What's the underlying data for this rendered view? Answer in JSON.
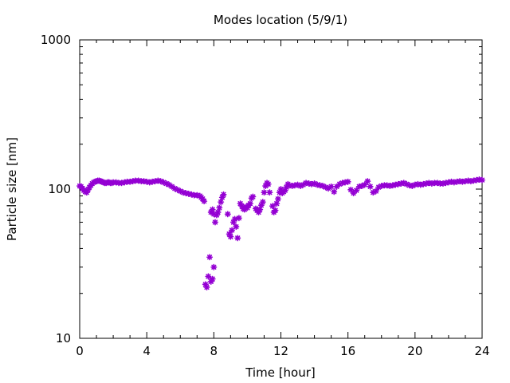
{
  "chart_data": {
    "type": "scatter",
    "title": "Modes location (5/9/1)",
    "xlabel": "Time [hour]",
    "ylabel": "Particle size [nm]",
    "xlim": [
      0,
      24
    ],
    "ylim": [
      10,
      1000
    ],
    "y_scale": "log",
    "grid": false,
    "marker_color": "#9400d3",
    "marker": "asterisk",
    "x_ticks": [
      {
        "value": 0,
        "label": "0"
      },
      {
        "value": 4,
        "label": "4"
      },
      {
        "value": 8,
        "label": "8"
      },
      {
        "value": 12,
        "label": "12"
      },
      {
        "value": 16,
        "label": "16"
      },
      {
        "value": 20,
        "label": "20"
      },
      {
        "value": 24,
        "label": "24"
      }
    ],
    "y_ticks": [
      {
        "value": 10,
        "label": "10"
      },
      {
        "value": 100,
        "label": "100"
      },
      {
        "value": 1000,
        "label": "1000"
      }
    ],
    "points": [
      [
        0.0,
        105
      ],
      [
        0.08,
        104
      ],
      [
        0.17,
        101
      ],
      [
        0.25,
        98
      ],
      [
        0.33,
        96
      ],
      [
        0.42,
        95
      ],
      [
        0.5,
        99
      ],
      [
        0.58,
        103
      ],
      [
        0.67,
        106
      ],
      [
        0.75,
        109
      ],
      [
        0.83,
        111
      ],
      [
        0.92,
        112
      ],
      [
        1.0,
        113
      ],
      [
        1.08,
        114
      ],
      [
        1.17,
        114
      ],
      [
        1.25,
        113
      ],
      [
        1.33,
        112
      ],
      [
        1.42,
        111
      ],
      [
        1.5,
        110
      ],
      [
        1.58,
        110
      ],
      [
        1.67,
        111
      ],
      [
        1.75,
        111
      ],
      [
        1.83,
        110
      ],
      [
        1.92,
        110
      ],
      [
        2.0,
        111
      ],
      [
        2.17,
        111
      ],
      [
        2.33,
        110
      ],
      [
        2.5,
        110
      ],
      [
        2.67,
        111
      ],
      [
        2.83,
        112
      ],
      [
        3.0,
        112
      ],
      [
        3.17,
        113
      ],
      [
        3.33,
        114
      ],
      [
        3.5,
        114
      ],
      [
        3.67,
        113
      ],
      [
        3.83,
        113
      ],
      [
        4.0,
        112
      ],
      [
        4.17,
        111
      ],
      [
        4.33,
        112
      ],
      [
        4.5,
        113
      ],
      [
        4.67,
        114
      ],
      [
        4.83,
        113
      ],
      [
        5.0,
        111
      ],
      [
        5.17,
        109
      ],
      [
        5.33,
        107
      ],
      [
        5.5,
        104
      ],
      [
        5.67,
        101
      ],
      [
        5.83,
        99
      ],
      [
        6.0,
        97
      ],
      [
        6.17,
        95
      ],
      [
        6.33,
        94
      ],
      [
        6.5,
        93
      ],
      [
        6.67,
        92
      ],
      [
        6.83,
        91
      ],
      [
        7.0,
        91
      ],
      [
        7.17,
        90
      ],
      [
        7.25,
        88
      ],
      [
        7.33,
        86
      ],
      [
        7.42,
        83
      ],
      [
        7.5,
        23
      ],
      [
        7.58,
        22
      ],
      [
        7.67,
        26
      ],
      [
        7.75,
        35
      ],
      [
        7.83,
        24
      ],
      [
        7.92,
        25
      ],
      [
        8.0,
        30
      ],
      [
        7.83,
        70
      ],
      [
        7.92,
        73
      ],
      [
        8.0,
        68
      ],
      [
        8.08,
        60
      ],
      [
        8.17,
        67
      ],
      [
        8.25,
        70
      ],
      [
        8.33,
        75
      ],
      [
        8.42,
        82
      ],
      [
        8.5,
        88
      ],
      [
        8.58,
        92
      ],
      [
        8.83,
        68
      ],
      [
        8.92,
        50
      ],
      [
        9.0,
        48
      ],
      [
        9.08,
        53
      ],
      [
        9.17,
        60
      ],
      [
        9.25,
        63
      ],
      [
        9.33,
        56
      ],
      [
        9.42,
        47
      ],
      [
        9.5,
        64
      ],
      [
        9.58,
        80
      ],
      [
        9.67,
        77
      ],
      [
        9.75,
        74
      ],
      [
        9.83,
        73
      ],
      [
        9.92,
        76
      ],
      [
        10.0,
        75
      ],
      [
        10.08,
        78
      ],
      [
        10.17,
        80
      ],
      [
        10.25,
        87
      ],
      [
        10.33,
        89
      ],
      [
        10.5,
        74
      ],
      [
        10.58,
        72
      ],
      [
        10.67,
        70
      ],
      [
        10.75,
        73
      ],
      [
        10.83,
        78
      ],
      [
        10.92,
        82
      ],
      [
        11.0,
        95
      ],
      [
        11.08,
        105
      ],
      [
        11.17,
        110
      ],
      [
        11.25,
        108
      ],
      [
        11.33,
        95
      ],
      [
        11.5,
        77
      ],
      [
        11.58,
        70
      ],
      [
        11.67,
        72
      ],
      [
        11.75,
        80
      ],
      [
        11.83,
        86
      ],
      [
        11.92,
        95
      ],
      [
        12.0,
        100
      ],
      [
        12.08,
        94
      ],
      [
        12.17,
        96
      ],
      [
        12.25,
        98
      ],
      [
        12.33,
        103
      ],
      [
        12.42,
        108
      ],
      [
        12.5,
        106
      ],
      [
        12.67,
        105
      ],
      [
        12.83,
        106
      ],
      [
        13.0,
        107
      ],
      [
        13.17,
        105
      ],
      [
        13.33,
        107
      ],
      [
        13.5,
        110
      ],
      [
        13.67,
        109
      ],
      [
        13.83,
        108
      ],
      [
        14.0,
        109
      ],
      [
        14.17,
        107
      ],
      [
        14.33,
        106
      ],
      [
        14.5,
        105
      ],
      [
        14.67,
        103
      ],
      [
        14.83,
        101
      ],
      [
        15.0,
        104
      ],
      [
        15.17,
        96
      ],
      [
        15.33,
        104
      ],
      [
        15.5,
        108
      ],
      [
        15.67,
        110
      ],
      [
        15.83,
        111
      ],
      [
        16.0,
        112
      ],
      [
        16.17,
        99
      ],
      [
        16.33,
        94
      ],
      [
        16.5,
        98
      ],
      [
        16.67,
        104
      ],
      [
        16.83,
        105
      ],
      [
        17.0,
        107
      ],
      [
        17.17,
        113
      ],
      [
        17.33,
        104
      ],
      [
        17.5,
        95
      ],
      [
        17.67,
        97
      ],
      [
        17.83,
        103
      ],
      [
        18.0,
        105
      ],
      [
        18.17,
        106
      ],
      [
        18.33,
        106
      ],
      [
        18.5,
        105
      ],
      [
        18.67,
        106
      ],
      [
        18.83,
        107
      ],
      [
        19.0,
        108
      ],
      [
        19.17,
        109
      ],
      [
        19.33,
        110
      ],
      [
        19.5,
        108
      ],
      [
        19.67,
        106
      ],
      [
        19.83,
        105
      ],
      [
        20.0,
        107
      ],
      [
        20.17,
        108
      ],
      [
        20.33,
        107
      ],
      [
        20.5,
        108
      ],
      [
        20.67,
        109
      ],
      [
        20.83,
        110
      ],
      [
        21.0,
        109
      ],
      [
        21.17,
        110
      ],
      [
        21.33,
        110
      ],
      [
        21.5,
        109
      ],
      [
        21.67,
        109
      ],
      [
        21.83,
        110
      ],
      [
        22.0,
        111
      ],
      [
        22.17,
        112
      ],
      [
        22.33,
        111
      ],
      [
        22.5,
        112
      ],
      [
        22.67,
        113
      ],
      [
        22.83,
        112
      ],
      [
        23.0,
        113
      ],
      [
        23.17,
        114
      ],
      [
        23.33,
        113
      ],
      [
        23.5,
        114
      ],
      [
        23.67,
        115
      ],
      [
        23.83,
        116
      ],
      [
        24.0,
        115
      ]
    ]
  }
}
